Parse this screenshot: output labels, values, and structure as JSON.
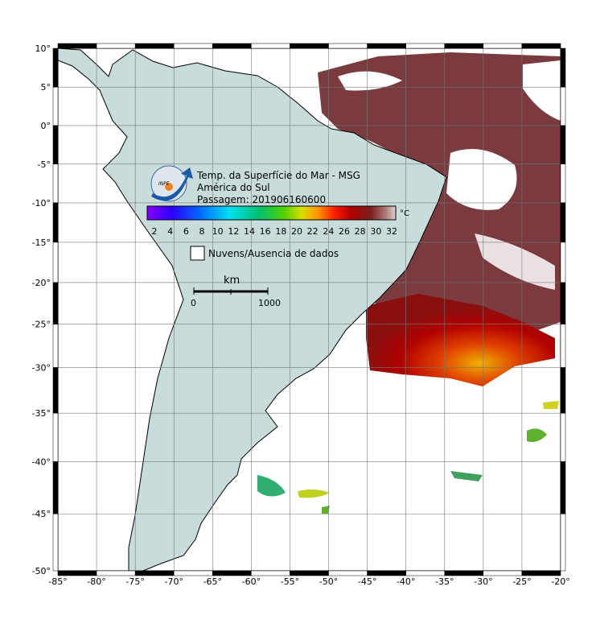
{
  "map": {
    "title_lines": [
      "Temp. da Superfície do Mar - MSG",
      "América do Sul",
      "Passagem: 201906160600"
    ],
    "logo_text": "INPE",
    "colorbar": {
      "unit": "°C",
      "ticks": [
        2,
        4,
        6,
        8,
        10,
        12,
        14,
        16,
        18,
        20,
        22,
        24,
        26,
        28,
        30,
        32
      ]
    },
    "legend": "Nuvens/Ausencia de dados",
    "scale": {
      "unit": "km",
      "labels": [
        "0",
        "1000"
      ]
    },
    "lon_ticks": [
      {
        "value": -85,
        "label": "-85°"
      },
      {
        "value": -80,
        "label": "-80°"
      },
      {
        "value": -75,
        "label": "-75°"
      },
      {
        "value": -70,
        "label": "-70°"
      },
      {
        "value": -65,
        "label": "-65°"
      },
      {
        "value": -60,
        "label": "-60°"
      },
      {
        "value": -55,
        "label": "-55°"
      },
      {
        "value": -50,
        "label": "-50°"
      },
      {
        "value": -45,
        "label": "-45°"
      },
      {
        "value": -40,
        "label": "-40°"
      },
      {
        "value": -35,
        "label": "-35°"
      },
      {
        "value": -30,
        "label": "-30°"
      },
      {
        "value": -25,
        "label": "-25°"
      },
      {
        "value": -20,
        "label": "-20°"
      }
    ],
    "lat_ticks": [
      {
        "value": 10,
        "label": "10°"
      },
      {
        "value": 5,
        "label": "5°"
      },
      {
        "value": 0,
        "label": "0°"
      },
      {
        "value": -5,
        "label": "-5°"
      },
      {
        "value": -10,
        "label": "-10°"
      },
      {
        "value": -15,
        "label": "-15°"
      },
      {
        "value": -20,
        "label": "-20°"
      },
      {
        "value": -25,
        "label": "-25°"
      },
      {
        "value": -30,
        "label": "-30°"
      },
      {
        "value": -35,
        "label": "-35°"
      },
      {
        "value": -40,
        "label": "-40°"
      },
      {
        "value": -45,
        "label": "-45°"
      },
      {
        "value": -50,
        "label": "-50°"
      }
    ]
  }
}
